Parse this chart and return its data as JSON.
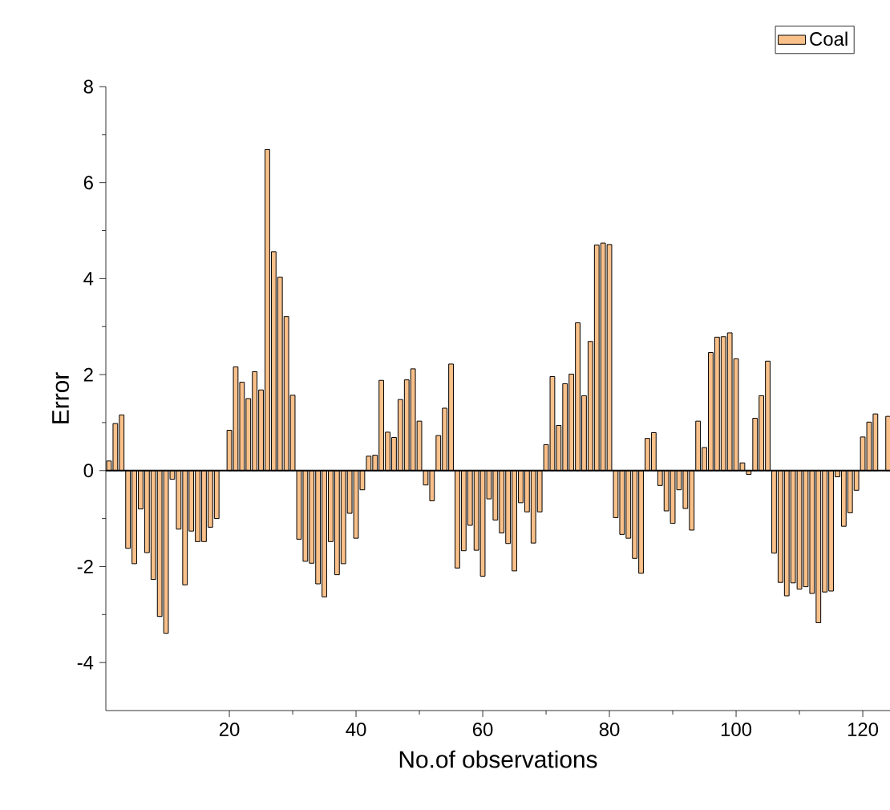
{
  "chart_data": {
    "type": "bar",
    "xlabel": "No.of observations",
    "ylabel": "Error",
    "x": [
      1,
      2,
      3,
      4,
      5,
      6,
      7,
      8,
      9,
      10,
      11,
      12,
      13,
      14,
      15,
      16,
      17,
      18,
      19,
      20,
      21,
      22,
      23,
      24,
      25,
      26,
      27,
      28,
      29,
      30,
      31,
      32,
      33,
      34,
      35,
      36,
      37,
      38,
      39,
      40,
      41,
      42,
      43,
      44,
      45,
      46,
      47,
      48,
      49,
      50,
      51,
      52,
      53,
      54,
      55,
      56,
      57,
      58,
      59,
      60,
      61,
      62,
      63,
      64,
      65,
      66,
      67,
      68,
      69,
      70,
      71,
      72,
      73,
      74,
      75,
      76,
      77,
      78,
      79,
      80,
      81,
      82,
      83,
      84,
      85,
      86,
      87,
      88,
      89,
      90,
      91,
      92,
      93,
      94,
      95,
      96,
      97,
      98,
      99,
      100,
      101,
      102,
      103,
      104,
      105,
      106,
      107,
      108,
      109,
      110,
      111,
      112,
      113,
      114,
      115,
      116,
      117,
      118,
      119,
      120,
      121,
      122,
      123,
      124
    ],
    "series": [
      {
        "name": "Coal",
        "color": "#f9c08a",
        "values": [
          0.2,
          0.98,
          1.16,
          -1.62,
          -1.94,
          -0.8,
          -1.71,
          -2.27,
          -3.04,
          -3.39,
          -0.18,
          -1.22,
          -2.38,
          -1.26,
          -1.48,
          -1.48,
          -1.18,
          -1.0,
          null,
          0.84,
          2.16,
          1.84,
          1.5,
          2.06,
          1.68,
          6.69,
          4.56,
          4.03,
          3.21,
          1.57,
          -1.43,
          -1.89,
          -1.93,
          -2.36,
          -2.63,
          -1.48,
          -2.17,
          -1.94,
          -0.89,
          -1.41,
          -0.4,
          0.3,
          0.32,
          1.88,
          0.8,
          0.69,
          1.48,
          1.89,
          2.12,
          1.03,
          -0.3,
          -0.63,
          0.73,
          1.3,
          2.22,
          -2.03,
          -1.67,
          -1.14,
          -1.66,
          -2.2,
          -0.59,
          -1.03,
          -1.3,
          -1.52,
          -2.09,
          -0.67,
          -0.86,
          -1.51,
          -0.86,
          0.54,
          1.96,
          0.94,
          1.81,
          2.01,
          3.08,
          1.56,
          2.69,
          4.7,
          4.74,
          4.71,
          -0.98,
          -1.33,
          -1.41,
          -1.83,
          -2.14,
          0.67,
          0.79,
          -0.31,
          -0.84,
          -1.1,
          -0.4,
          -0.79,
          -1.24,
          1.03,
          0.48,
          2.46,
          2.78,
          2.79,
          2.87,
          2.33,
          0.16,
          -0.08,
          1.09,
          1.56,
          2.28,
          -1.72,
          -2.33,
          -2.61,
          -2.34,
          -2.47,
          -2.42,
          -2.56,
          -3.17,
          -2.53,
          -2.51,
          -0.13,
          -1.16,
          -0.88,
          -0.41,
          0.7,
          1.01,
          1.18,
          null,
          1.13
        ]
      }
    ],
    "xlim": [
      0.5,
      124.3
    ],
    "ylim": [
      -5,
      8
    ],
    "xticks": [
      20,
      40,
      60,
      80,
      100,
      120
    ],
    "yticks": [
      -4,
      -2,
      0,
      2,
      4,
      6,
      8
    ],
    "ref_lines": [
      {
        "axis": "y",
        "value": 0
      }
    ],
    "legend": "top right"
  }
}
